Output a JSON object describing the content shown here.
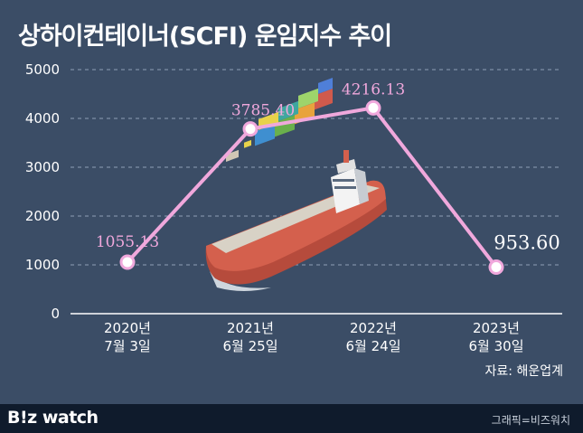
{
  "title": "상하이컨테이너(SCFI) 운임지수 추이",
  "source": "자료: 해운업계",
  "footer": {
    "logo": "B!z watch",
    "credit": "그래픽=비즈워치"
  },
  "colors": {
    "background": "#3b4d66",
    "line": "#f0a8dc",
    "footer": "#0f1b2c"
  },
  "chart_data": {
    "type": "line",
    "categories": [
      "2020년\n7월 3일",
      "2021년\n6월 25일",
      "2022년\n6월 24일",
      "2023년\n6월 30일"
    ],
    "series": [
      {
        "values": [
          1055.13,
          3785.4,
          4216.13,
          953.6
        ]
      }
    ],
    "data_labels": [
      "1055.13",
      "3785.40",
      "4216.13",
      "953.60"
    ],
    "y_ticks": [
      "0",
      "1000",
      "2000",
      "3000",
      "4000",
      "5000"
    ],
    "ylim": [
      0,
      5000
    ],
    "grid": true,
    "title": "상하이컨테이너(SCFI) 운임지수 추이",
    "xlabel": "",
    "ylabel": ""
  }
}
